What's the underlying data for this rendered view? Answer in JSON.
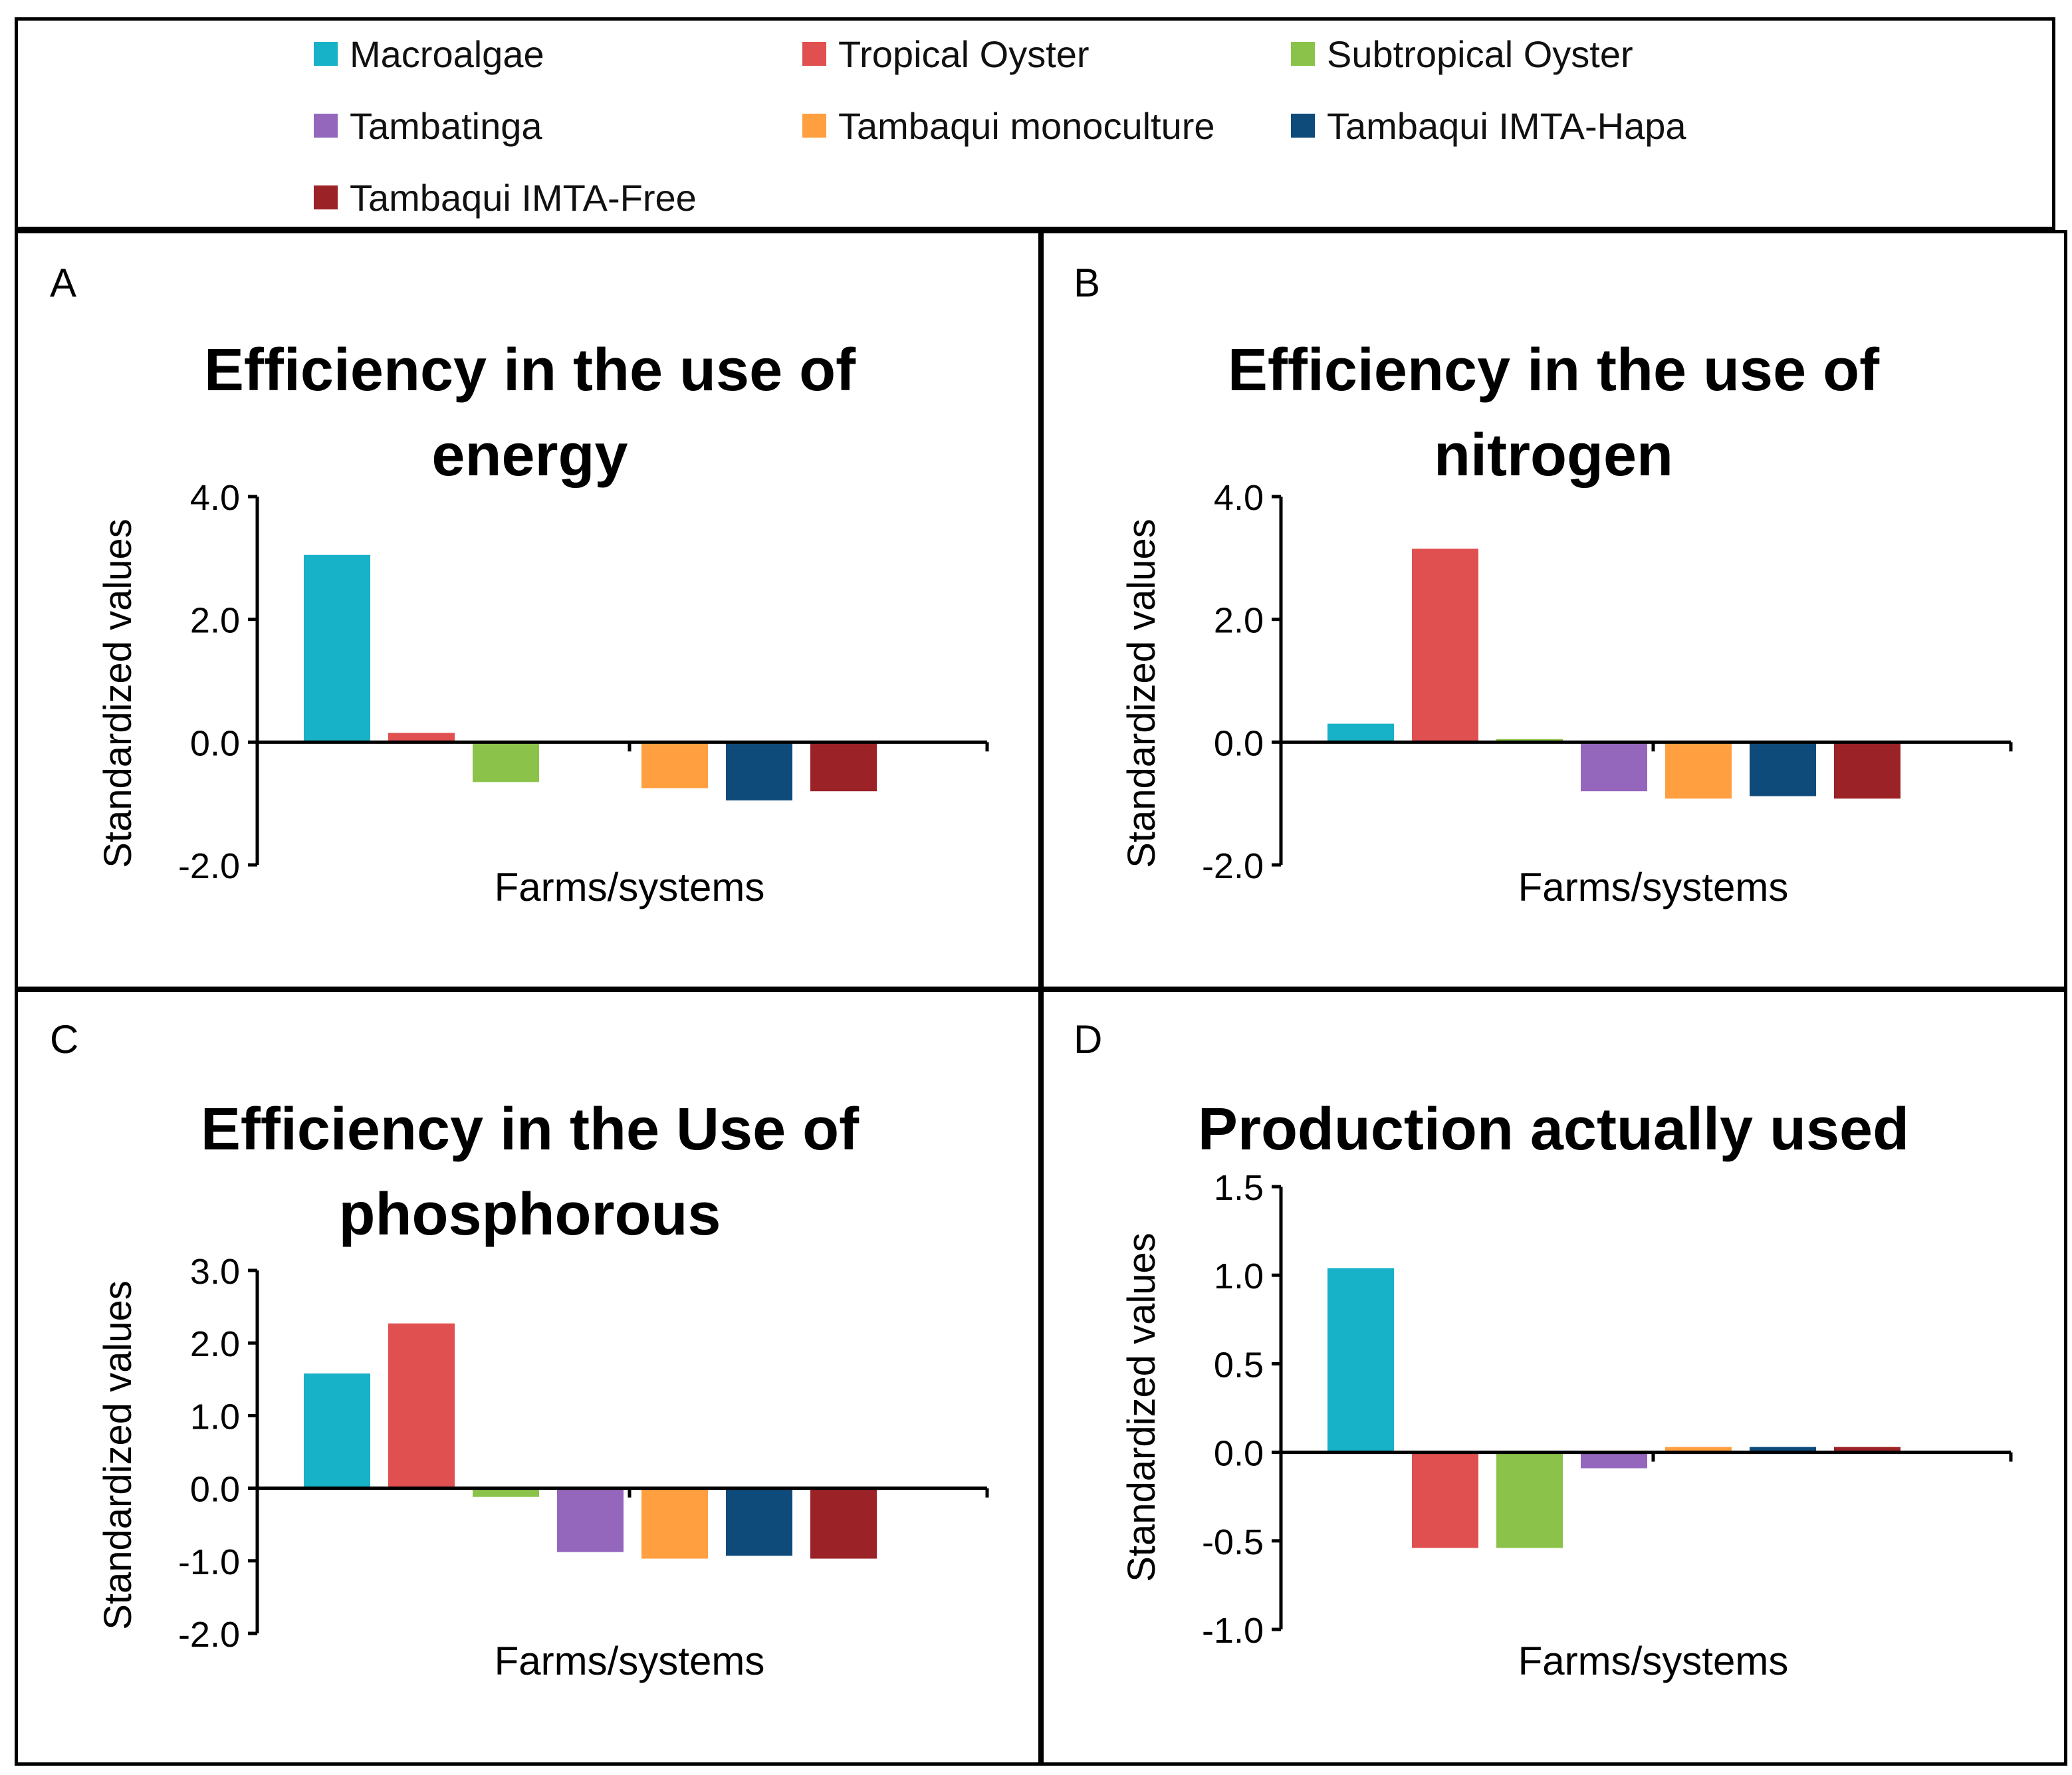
{
  "legend": {
    "items": [
      {
        "label": "Macroalgae",
        "color": "#17b2c8"
      },
      {
        "label": "Tropical Oyster",
        "color": "#e05050"
      },
      {
        "label": "Subtropical Oyster",
        "color": "#8bc34a"
      },
      {
        "label": "Tambatinga",
        "color": "#9467bd"
      },
      {
        "label": "Tambaqui monoculture",
        "color": "#ff9f40"
      },
      {
        "label": "Tambaqui IMTA-Hapa",
        "color": "#0e4a7a"
      },
      {
        "label": "Tambaqui IMTA-Free",
        "color": "#9b2226"
      }
    ]
  },
  "chart_data": [
    {
      "type": "bar",
      "panel_letter": "A",
      "title": "Efficiency in the use of",
      "title_line2": "energy",
      "ylabel": "Standardized values",
      "xlabel": "Farms/systems",
      "ylim": [
        -2.0,
        4.0
      ],
      "yticks": [
        "-2.0",
        "0.0",
        "2.0",
        "4.0"
      ],
      "series": [
        {
          "name": "Macroalgae",
          "value": 3.05
        },
        {
          "name": "Tropical Oyster",
          "value": 0.15
        },
        {
          "name": "Subtropical Oyster",
          "value": -0.65
        },
        {
          "name": "Tambatinga",
          "value": 0.0
        },
        {
          "name": "Tambaqui monoculture",
          "value": -0.75
        },
        {
          "name": "Tambaqui IMTA-Hapa",
          "value": -0.95
        },
        {
          "name": "Tambaqui IMTA-Free",
          "value": -0.8
        }
      ]
    },
    {
      "type": "bar",
      "panel_letter": "B",
      "title": "Efficiency in the use of",
      "title_line2": "nitrogen",
      "ylabel": "Standardized values",
      "xlabel": "Farms/systems",
      "ylim": [
        -2.0,
        4.0
      ],
      "yticks": [
        "-2.0",
        "0.0",
        "2.0",
        "4.0"
      ],
      "series": [
        {
          "name": "Macroalgae",
          "value": 0.3
        },
        {
          "name": "Tropical Oyster",
          "value": 3.15
        },
        {
          "name": "Subtropical Oyster",
          "value": 0.05
        },
        {
          "name": "Tambatinga",
          "value": -0.8
        },
        {
          "name": "Tambaqui monoculture",
          "value": -0.92
        },
        {
          "name": "Tambaqui IMTA-Hapa",
          "value": -0.88
        },
        {
          "name": "Tambaqui IMTA-Free",
          "value": -0.92
        }
      ]
    },
    {
      "type": "bar",
      "panel_letter": "C",
      "title": "Efficiency in the Use of",
      "title_line2": "phosphorous",
      "ylabel": "Standardized values",
      "xlabel": "Farms/systems",
      "ylim": [
        -2.0,
        3.0
      ],
      "yticks": [
        "-2.0",
        "-1.0",
        "0.0",
        "1.0",
        "2.0",
        "3.0"
      ],
      "series": [
        {
          "name": "Macroalgae",
          "value": 1.58
        },
        {
          "name": "Tropical Oyster",
          "value": 2.27
        },
        {
          "name": "Subtropical Oyster",
          "value": -0.12
        },
        {
          "name": "Tambatinga",
          "value": -0.88
        },
        {
          "name": "Tambaqui monoculture",
          "value": -0.97
        },
        {
          "name": "Tambaqui IMTA-Hapa",
          "value": -0.93
        },
        {
          "name": "Tambaqui IMTA-Free",
          "value": -0.97
        }
      ]
    },
    {
      "type": "bar",
      "panel_letter": "D",
      "title": "Production actually used",
      "title_line2": "",
      "ylabel": "Standardized values",
      "xlabel": "Farms/systems",
      "ylim": [
        -1.0,
        1.5
      ],
      "yticks": [
        "-1.0",
        "-0.5",
        "0.0",
        "0.5",
        "1.0",
        "1.5"
      ],
      "series": [
        {
          "name": "Macroalgae",
          "value": 1.04
        },
        {
          "name": "Tropical Oyster",
          "value": -0.54
        },
        {
          "name": "Subtropical Oyster",
          "value": -0.54
        },
        {
          "name": "Tambatinga",
          "value": -0.09
        },
        {
          "name": "Tambaqui monoculture",
          "value": 0.03
        },
        {
          "name": "Tambaqui IMTA-Hapa",
          "value": 0.03
        },
        {
          "name": "Tambaqui IMTA-Free",
          "value": 0.03
        }
      ]
    }
  ]
}
